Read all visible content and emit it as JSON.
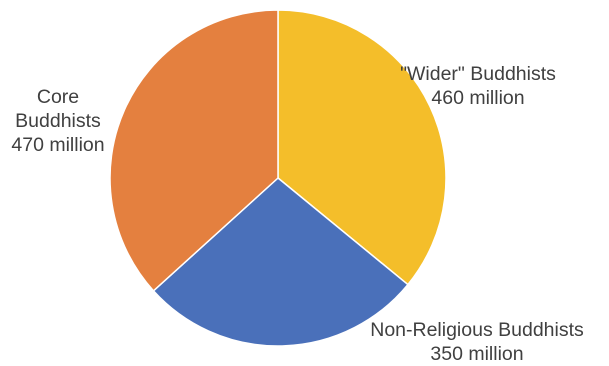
{
  "chart_data": {
    "type": "pie",
    "title": "",
    "unit": "million",
    "slices": [
      {
        "label": "\"Wider\" Buddhists",
        "value": 460,
        "value_label": "460 million",
        "color": "#F4BE2A"
      },
      {
        "label": "Non-Religious Buddhists",
        "value": 350,
        "value_label": "350 million",
        "color": "#4A70BA"
      },
      {
        "label": "Core Buddhists",
        "value": 470,
        "value_label": "470 million",
        "color": "#E4803F"
      }
    ],
    "label_lines": {
      "wider": [
        "\"Wider\" Buddhists",
        "460 million"
      ],
      "core": [
        "Core",
        "Buddhists",
        "470 million"
      ],
      "nonrel": [
        "Non-Religious Buddhists",
        "350 million"
      ]
    },
    "start_angle": "12 o'clock, clockwise"
  }
}
